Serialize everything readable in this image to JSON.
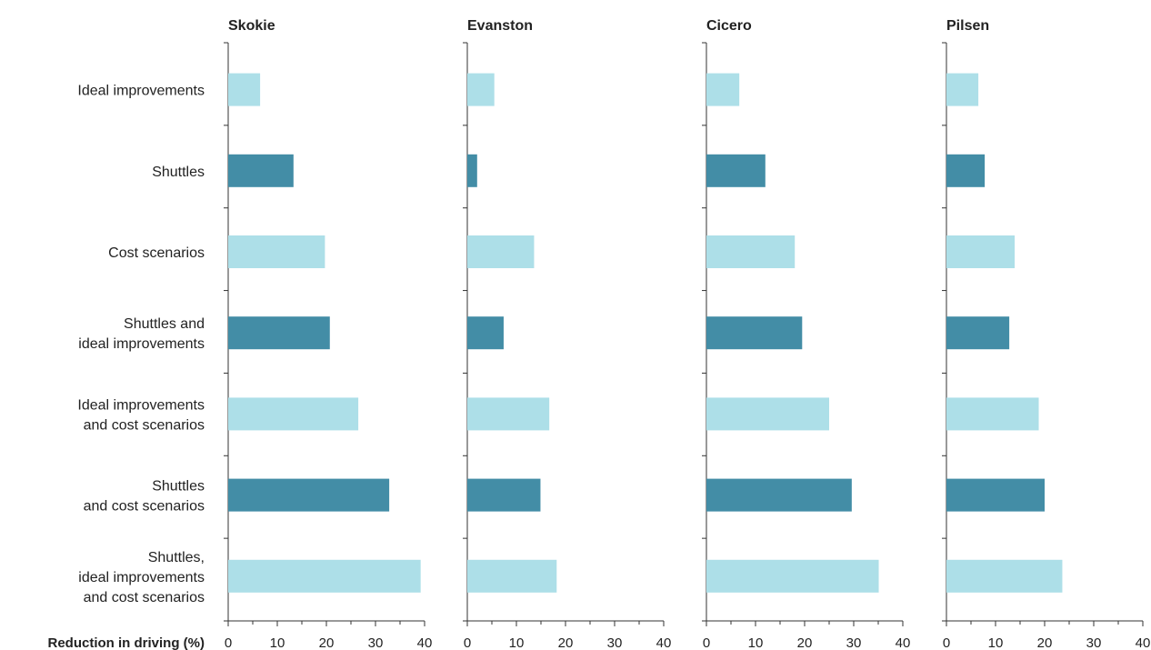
{
  "chart_data": {
    "type": "bar",
    "orientation": "horizontal",
    "xlabel": "Reduction in driving (%)",
    "xlim": [
      0,
      40
    ],
    "xticks": [
      0,
      10,
      20,
      30,
      40
    ],
    "categories": [
      [
        "Ideal improvements"
      ],
      [
        "Shuttles"
      ],
      [
        "Cost scenarios"
      ],
      [
        "Shuttles and",
        "ideal improvements"
      ],
      [
        "Ideal improvements",
        "and cost scenarios"
      ],
      [
        "Shuttles",
        "and cost scenarios"
      ],
      [
        "Shuttles,",
        "ideal improvements",
        "and cost scenarios"
      ]
    ],
    "bar_colors": [
      "#addfe8",
      "#438da6",
      "#addfe8",
      "#438da6",
      "#addfe8",
      "#438da6",
      "#addfe8"
    ],
    "panels": [
      {
        "title": "Skokie",
        "values": [
          6.5,
          13.3,
          19.7,
          20.7,
          26.5,
          32.8,
          39.2
        ]
      },
      {
        "title": "Evanston",
        "values": [
          5.5,
          2.0,
          13.6,
          7.4,
          16.7,
          14.9,
          18.2
        ]
      },
      {
        "title": "Cicero",
        "values": [
          6.7,
          12.0,
          18.0,
          19.5,
          25.0,
          29.6,
          35.1
        ]
      },
      {
        "title": "Pilsen",
        "values": [
          6.5,
          7.8,
          13.9,
          12.8,
          18.8,
          20.0,
          23.6
        ]
      }
    ],
    "grid": false,
    "legend": "none"
  }
}
